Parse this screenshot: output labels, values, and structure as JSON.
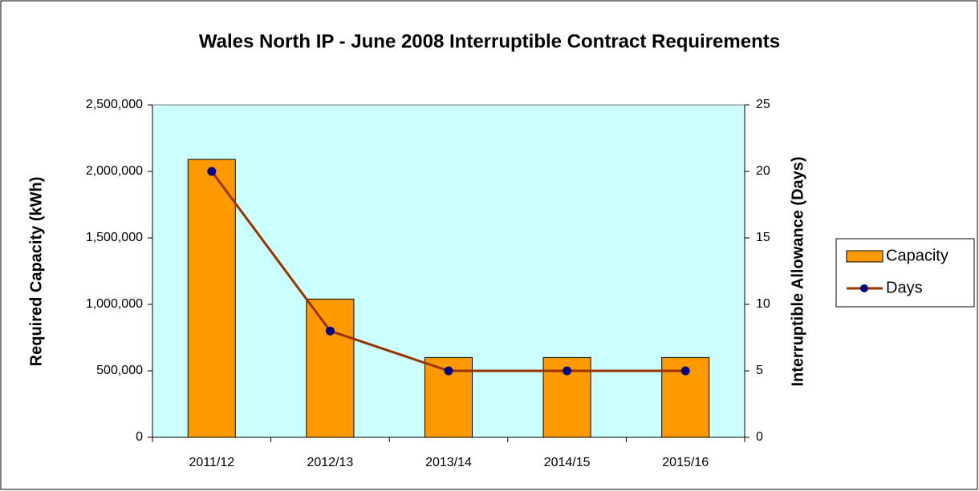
{
  "chart_data": {
    "type": "bar",
    "title": "Wales North IP - June 2008 Interruptible Contract Requirements",
    "ylabel": "Required Capacity (kWh)",
    "y2label": "Interruptible Allowance (Days)",
    "categories": [
      "2011/12",
      "2012/13",
      "2013/14",
      "2014/15",
      "2015/16"
    ],
    "series": [
      {
        "name": "Capacity",
        "type": "bar",
        "color": "#ff9900",
        "values": [
          2090000,
          1040000,
          600000,
          600000,
          600000
        ]
      },
      {
        "name": "Days",
        "type": "line",
        "axis": "y2",
        "color": "#993300",
        "marker_color": "#000080",
        "values": [
          20,
          8,
          5,
          5,
          5
        ]
      }
    ],
    "ylim": [
      0,
      2500000
    ],
    "yticks": [
      0,
      {
        "value": 500000,
        "label": "500,000"
      },
      {
        "value": 1000000,
        "label": "1,000,000"
      },
      {
        "value": 1500000,
        "label": "1,500,000"
      },
      {
        "value": 2000000,
        "label": "2,000,000"
      },
      {
        "value": 2500000,
        "label": "2,500,000"
      }
    ],
    "y2lim": [
      0,
      25
    ],
    "y2ticks": [
      0,
      5,
      10,
      15,
      20,
      25
    ],
    "plot_background": "#ccffff",
    "legend": "right"
  }
}
